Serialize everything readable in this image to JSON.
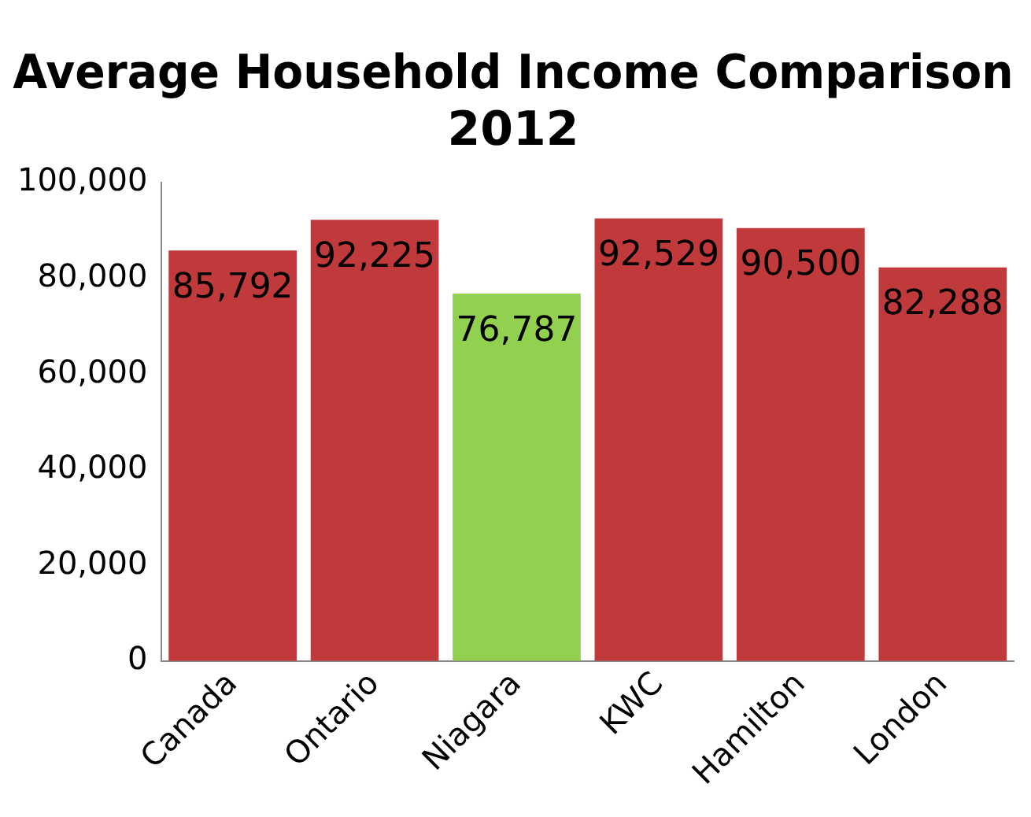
{
  "chart_data": {
    "type": "bar",
    "title": "Average Household Income Comparison 2012",
    "categories": [
      "Canada",
      "Ontario",
      "Niagara",
      "KWC",
      "Hamilton",
      "London"
    ],
    "values": [
      85792,
      92225,
      76787,
      92529,
      90500,
      82288
    ],
    "colors": [
      "#c0393b",
      "#c0393b",
      "#92d050",
      "#c0393b",
      "#c0393b",
      "#c0393b"
    ],
    "ylim": [
      0,
      100000
    ],
    "yticks": [
      {
        "value": 0,
        "label": "0"
      },
      {
        "value": 20000,
        "label": "20,000"
      },
      {
        "value": 40000,
        "label": "40,000"
      },
      {
        "value": 60000,
        "label": "60,000"
      },
      {
        "value": 80000,
        "label": "80,000"
      },
      {
        "value": 100000,
        "label": "100,000"
      }
    ],
    "value_labels": [
      "85,792",
      "92,225",
      "76,787",
      "92,529",
      "90,500",
      "82,288"
    ],
    "grid": false,
    "legend": false
  }
}
